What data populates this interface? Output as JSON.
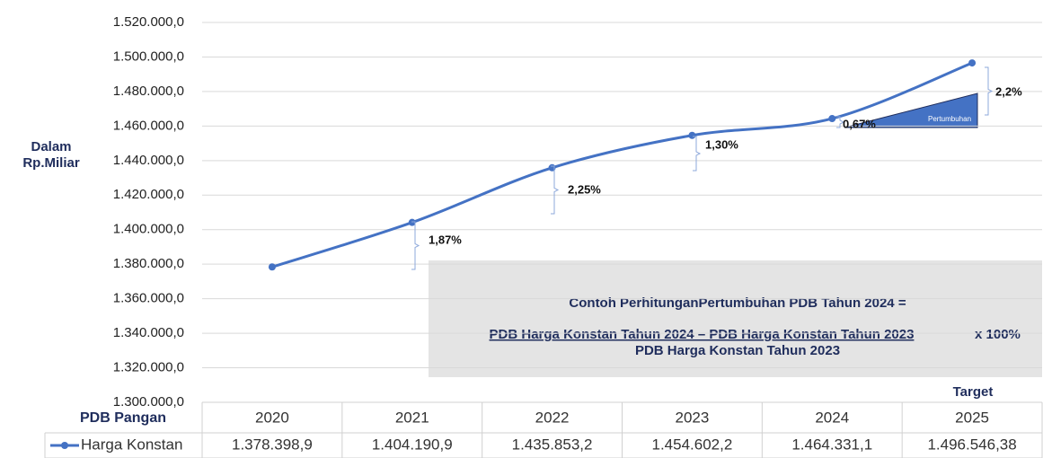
{
  "chart_data": {
    "type": "line",
    "y_axis_label": [
      "Dalam",
      "Rp.Miliar"
    ],
    "table_header": "PDB Pangan",
    "categories": [
      "2020",
      "2021",
      "2022",
      "2023",
      "2024",
      "2025"
    ],
    "category_note": "Target",
    "series": [
      {
        "name": "Harga Konstan",
        "color": "#4472c4",
        "values": [
          1378398.9,
          1404190.9,
          1435853.2,
          1454602.2,
          1464331.1,
          1496546.38
        ],
        "value_labels": [
          "1.378.398,9",
          "1.404.190,9",
          "1.435.853,2",
          "1.454.602,2",
          "1.464.331,1",
          "1.496.546,38"
        ]
      }
    ],
    "ylim": [
      1300000,
      1520000
    ],
    "yticks": [
      {
        "value": 1300000,
        "label": "1.300.000,0"
      },
      {
        "value": 1320000,
        "label": "1.320.000,0"
      },
      {
        "value": 1340000,
        "label": "1.340.000,0"
      },
      {
        "value": 1360000,
        "label": "1.360.000,0"
      },
      {
        "value": 1380000,
        "label": "1.380.000,0"
      },
      {
        "value": 1400000,
        "label": "1.400.000,0"
      },
      {
        "value": 1420000,
        "label": "1.420.000,0"
      },
      {
        "value": 1440000,
        "label": "1.440.000,0"
      },
      {
        "value": 1460000,
        "label": "1.460.000,0"
      },
      {
        "value": 1480000,
        "label": "1.480.000,0"
      },
      {
        "value": 1500000,
        "label": "1.500.000,0"
      },
      {
        "value": 1520000,
        "label": "1.520.000,0"
      }
    ],
    "grid": true,
    "annotations": [
      "1,87%",
      "2,25%",
      "1,30%",
      "0,67%",
      "2,2%"
    ],
    "triangle_label": "Pertumbuhan",
    "formula": {
      "title": "Contoh PerhitunganPertumbuhan PDB Tahun 2024 =",
      "numerator": "PDB Harga Konstan Tahun 2024 – PDB Harga Konstan Tahun 2023",
      "multiplier": "x 100%",
      "denominator": "PDB Harga Konstan Tahun 2023"
    }
  }
}
